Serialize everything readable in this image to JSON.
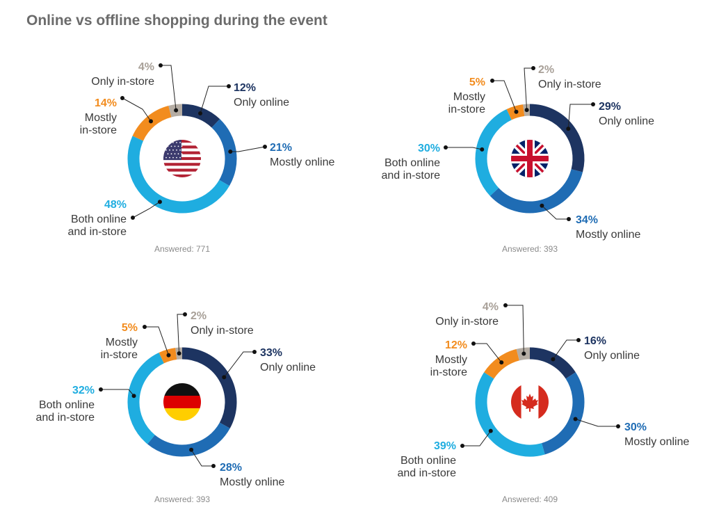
{
  "title": "Online vs offline shopping during the event",
  "colors": {
    "only_online": "#1d3461",
    "mostly_online": "#1f6cb4",
    "both": "#1fade0",
    "mostly_instore": "#f28c1e",
    "only_instore": "#b5ada4"
  },
  "chart_data": [
    {
      "type": "pie",
      "flag": "us-flag-icon",
      "answered": "Answered: 771",
      "slices": [
        {
          "key": "only_online",
          "pct": "12%",
          "value": 12,
          "label": [
            "Only online"
          ]
        },
        {
          "key": "mostly_online",
          "pct": "21%",
          "value": 21,
          "label": [
            "Mostly online"
          ]
        },
        {
          "key": "both",
          "pct": "48%",
          "value": 48,
          "label": [
            "Both online",
            "and in-store"
          ]
        },
        {
          "key": "mostly_instore",
          "pct": "14%",
          "value": 14,
          "label": [
            "Mostly",
            "in-store"
          ]
        },
        {
          "key": "only_instore",
          "pct": "4%",
          "value": 4,
          "label": [
            "Only in-store"
          ]
        }
      ]
    },
    {
      "type": "pie",
      "flag": "uk-flag-icon",
      "answered": "Answered: 393",
      "slices": [
        {
          "key": "only_online",
          "pct": "29%",
          "value": 29,
          "label": [
            "Only online"
          ]
        },
        {
          "key": "mostly_online",
          "pct": "34%",
          "value": 34,
          "label": [
            "Mostly online"
          ]
        },
        {
          "key": "both",
          "pct": "30%",
          "value": 30,
          "label": [
            "Both online",
            "and in-store"
          ]
        },
        {
          "key": "mostly_instore",
          "pct": "5%",
          "value": 5,
          "label": [
            "Mostly",
            "in-store"
          ]
        },
        {
          "key": "only_instore",
          "pct": "2%",
          "value": 2,
          "label": [
            "Only in-store"
          ]
        }
      ]
    },
    {
      "type": "pie",
      "flag": "germany-flag-icon",
      "answered": "Answered: 393",
      "slices": [
        {
          "key": "only_online",
          "pct": "33%",
          "value": 33,
          "label": [
            "Only online"
          ]
        },
        {
          "key": "mostly_online",
          "pct": "28%",
          "value": 28,
          "label": [
            "Mostly online"
          ]
        },
        {
          "key": "both",
          "pct": "32%",
          "value": 32,
          "label": [
            "Both online",
            "and in-store"
          ]
        },
        {
          "key": "mostly_instore",
          "pct": "5%",
          "value": 5,
          "label": [
            "Mostly",
            "in-store"
          ]
        },
        {
          "key": "only_instore",
          "pct": "2%",
          "value": 2,
          "label": [
            "Only in-store"
          ]
        }
      ]
    },
    {
      "type": "pie",
      "flag": "canada-flag-icon",
      "answered": "Answered: 409",
      "slices": [
        {
          "key": "only_online",
          "pct": "16%",
          "value": 16,
          "label": [
            "Only online"
          ]
        },
        {
          "key": "mostly_online",
          "pct": "30%",
          "value": 30,
          "label": [
            "Mostly online"
          ]
        },
        {
          "key": "both",
          "pct": "39%",
          "value": 39,
          "label": [
            "Both online",
            "and in-store"
          ]
        },
        {
          "key": "mostly_instore",
          "pct": "12%",
          "value": 12,
          "label": [
            "Mostly",
            "in-store"
          ]
        },
        {
          "key": "only_instore",
          "pct": "4%",
          "value": 4,
          "label": [
            "Only in-store"
          ]
        }
      ]
    }
  ]
}
